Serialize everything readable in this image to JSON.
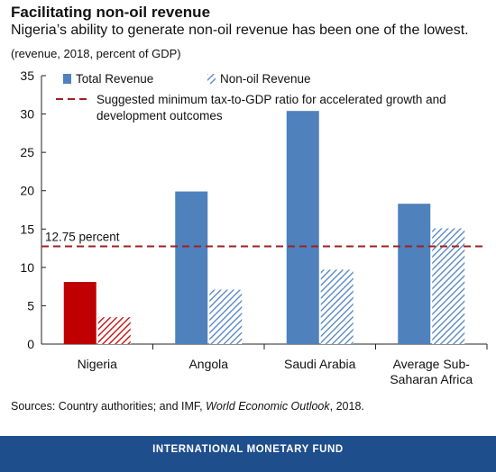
{
  "header": {
    "title": "Facilitating non-oil revenue",
    "subtitle": "Nigeria’s ability to generate non-oil revenue has been one of the lowest.",
    "unit": "(revenue, 2018, percent of GDP)"
  },
  "sources": {
    "prefix": "Sources: Country authorities; and IMF, ",
    "publication": "World Economic Outlook",
    "suffix": ", 2018."
  },
  "footer": {
    "label": "INTERNATIONAL MONETARY FUND"
  },
  "colors": {
    "total": "#4f81bd",
    "nonoil": "#4f81bd",
    "highlight": "#c00000",
    "reference": "#a02020",
    "footer_bg": "#1f4e8c"
  },
  "chart_data": {
    "type": "bar",
    "categories": [
      "Nigeria",
      "Angola",
      "Saudi Arabia",
      "Average Sub-Saharan Africa"
    ],
    "category_lines": [
      [
        "Nigeria"
      ],
      [
        "Angola"
      ],
      [
        "Saudi Arabia"
      ],
      [
        "Average Sub-",
        "Saharan Africa"
      ]
    ],
    "series": [
      {
        "name": "Total Revenue",
        "values": [
          8.1,
          19.9,
          30.4,
          18.3
        ]
      },
      {
        "name": "Non-oil Revenue",
        "values": [
          3.5,
          7.1,
          9.7,
          15.1
        ]
      }
    ],
    "highlight_category": "Nigeria",
    "reference_line": {
      "value": 12.75,
      "label": "12.75 percent",
      "legend": [
        "Suggested minimum tax-to-GDP ratio for accelerated growth and",
        "development outcomes"
      ]
    },
    "yticks": [
      0,
      5,
      10,
      15,
      20,
      25,
      30,
      35
    ],
    "ylim": [
      0,
      35
    ],
    "legend_position": "top",
    "grid": false
  }
}
